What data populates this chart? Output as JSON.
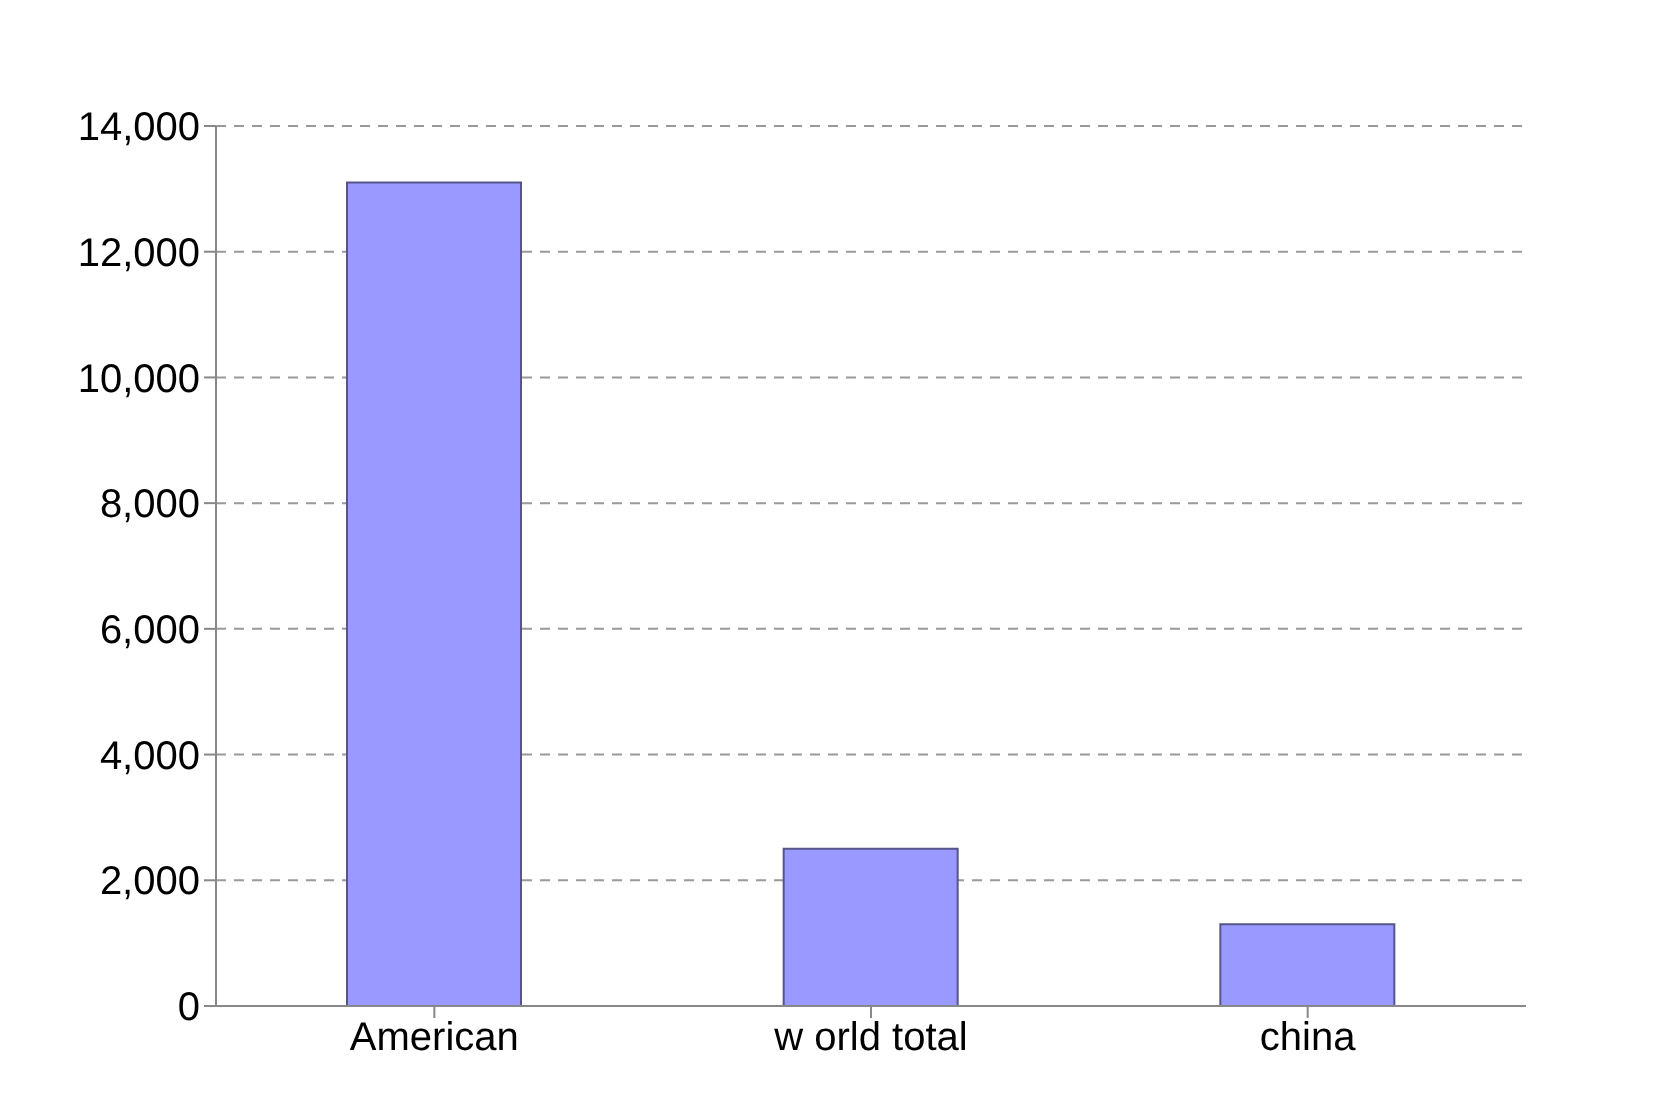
{
  "chart_data": {
    "type": "bar",
    "categories": [
      "American",
      "w orld total",
      "china"
    ],
    "values": [
      13100,
      2500,
      1300
    ],
    "color": "#9999ff",
    "ylim": [
      0,
      14000
    ],
    "yticks": [
      {
        "value": 0,
        "label": "0"
      },
      {
        "value": 2000,
        "label": "2,000"
      },
      {
        "value": 4000,
        "label": "4,000"
      },
      {
        "value": 6000,
        "label": "6,000"
      },
      {
        "value": 8000,
        "label": "8,000"
      },
      {
        "value": 10000,
        "label": "10,000"
      },
      {
        "value": 12000,
        "label": "12,000"
      },
      {
        "value": 14000,
        "label": "14,000"
      }
    ],
    "grid": "y"
  }
}
